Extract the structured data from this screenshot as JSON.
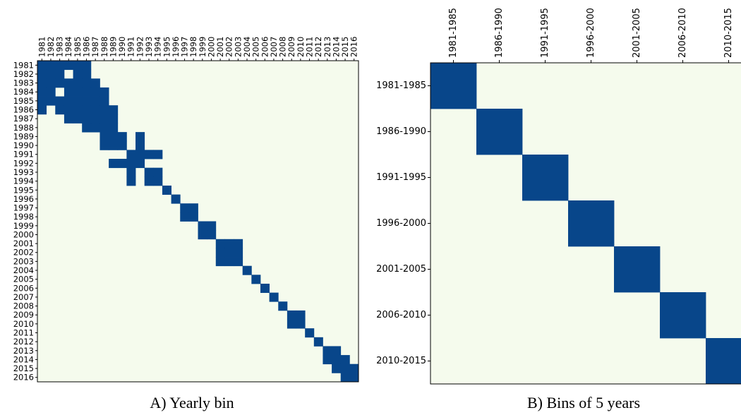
{
  "chart_data": [
    {
      "type": "heatmap",
      "caption": "A)  Yearly bin",
      "labels": [
        "1981",
        "1982",
        "1983",
        "1984",
        "1985",
        "1986",
        "1987",
        "1988",
        "1989",
        "1990",
        "1991",
        "1992",
        "1993",
        "1994",
        "1995",
        "1996",
        "1997",
        "1998",
        "1999",
        "2000",
        "2001",
        "2002",
        "2003",
        "2004",
        "2005",
        "2006",
        "2007",
        "2008",
        "2009",
        "2010",
        "2011",
        "2012",
        "2013",
        "2014",
        "2015",
        "2016"
      ],
      "filled_cells": [
        [
          0,
          0
        ],
        [
          0,
          1
        ],
        [
          0,
          2
        ],
        [
          0,
          3
        ],
        [
          0,
          4
        ],
        [
          0,
          5
        ],
        [
          1,
          0
        ],
        [
          1,
          1
        ],
        [
          1,
          2
        ],
        [
          1,
          4
        ],
        [
          1,
          5
        ],
        [
          2,
          0
        ],
        [
          2,
          1
        ],
        [
          2,
          2
        ],
        [
          2,
          3
        ],
        [
          2,
          4
        ],
        [
          2,
          5
        ],
        [
          2,
          6
        ],
        [
          3,
          0
        ],
        [
          3,
          1
        ],
        [
          3,
          3
        ],
        [
          3,
          4
        ],
        [
          3,
          5
        ],
        [
          3,
          6
        ],
        [
          3,
          7
        ],
        [
          4,
          0
        ],
        [
          4,
          1
        ],
        [
          4,
          2
        ],
        [
          4,
          3
        ],
        [
          4,
          4
        ],
        [
          4,
          5
        ],
        [
          4,
          6
        ],
        [
          4,
          7
        ],
        [
          5,
          0
        ],
        [
          5,
          2
        ],
        [
          5,
          3
        ],
        [
          5,
          4
        ],
        [
          5,
          5
        ],
        [
          5,
          6
        ],
        [
          5,
          7
        ],
        [
          5,
          8
        ],
        [
          6,
          3
        ],
        [
          6,
          4
        ],
        [
          6,
          5
        ],
        [
          6,
          6
        ],
        [
          6,
          7
        ],
        [
          6,
          8
        ],
        [
          7,
          5
        ],
        [
          7,
          6
        ],
        [
          7,
          7
        ],
        [
          7,
          8
        ],
        [
          8,
          7
        ],
        [
          8,
          8
        ],
        [
          8,
          9
        ],
        [
          8,
          11
        ],
        [
          9,
          7
        ],
        [
          9,
          8
        ],
        [
          9,
          9
        ],
        [
          9,
          11
        ],
        [
          10,
          10
        ],
        [
          10,
          11
        ],
        [
          10,
          12
        ],
        [
          10,
          13
        ],
        [
          11,
          8
        ],
        [
          11,
          9
        ],
        [
          11,
          10
        ],
        [
          11,
          11
        ],
        [
          12,
          10
        ],
        [
          12,
          12
        ],
        [
          12,
          13
        ],
        [
          13,
          10
        ],
        [
          13,
          12
        ],
        [
          13,
          13
        ],
        [
          14,
          14
        ],
        [
          15,
          15
        ],
        [
          16,
          16
        ],
        [
          16,
          17
        ],
        [
          17,
          16
        ],
        [
          17,
          17
        ],
        [
          18,
          18
        ],
        [
          18,
          19
        ],
        [
          19,
          18
        ],
        [
          19,
          19
        ],
        [
          20,
          20
        ],
        [
          20,
          21
        ],
        [
          20,
          22
        ],
        [
          21,
          20
        ],
        [
          21,
          21
        ],
        [
          21,
          22
        ],
        [
          22,
          20
        ],
        [
          22,
          21
        ],
        [
          22,
          22
        ],
        [
          23,
          23
        ],
        [
          24,
          24
        ],
        [
          25,
          25
        ],
        [
          26,
          26
        ],
        [
          27,
          27
        ],
        [
          28,
          28
        ],
        [
          28,
          29
        ],
        [
          29,
          28
        ],
        [
          29,
          29
        ],
        [
          30,
          30
        ],
        [
          31,
          31
        ],
        [
          32,
          32
        ],
        [
          32,
          33
        ],
        [
          33,
          32
        ],
        [
          33,
          33
        ],
        [
          33,
          34
        ],
        [
          34,
          33
        ],
        [
          34,
          34
        ],
        [
          34,
          35
        ],
        [
          35,
          34
        ],
        [
          35,
          35
        ]
      ],
      "colors": {
        "filled": "#08468a",
        "empty": "#f5fbed"
      }
    },
    {
      "type": "heatmap",
      "caption": "B) Bins of 5 years",
      "labels": [
        "1981-1985",
        "1986-1990",
        "1991-1995",
        "1996-2000",
        "2001-2005",
        "2006-2010",
        "2010-2015"
      ],
      "filled_cells": [
        [
          0,
          0
        ],
        [
          1,
          1
        ],
        [
          2,
          2
        ],
        [
          3,
          3
        ],
        [
          4,
          4
        ],
        [
          5,
          5
        ],
        [
          6,
          6
        ]
      ],
      "colors": {
        "filled": "#08468a",
        "empty": "#f5fbed"
      }
    }
  ]
}
